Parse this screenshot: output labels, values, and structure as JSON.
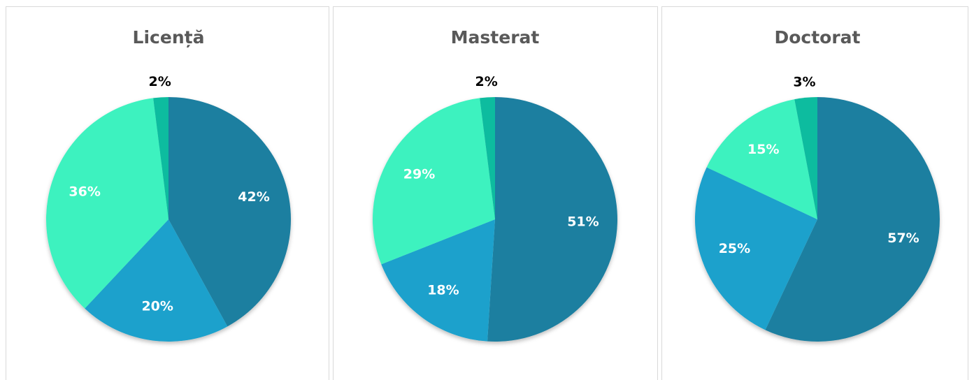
{
  "chart_data": [
    {
      "type": "pie",
      "title": "Licență",
      "values": [
        42,
        20,
        36,
        2
      ],
      "value_labels": [
        "42%",
        "20%",
        "36%",
        "2%"
      ],
      "colors": [
        "#1f7fa0",
        "#1aa1cc",
        "#3df2bf",
        "#10bc9f"
      ]
    },
    {
      "type": "pie",
      "title": "Masterat",
      "values": [
        51,
        18,
        29,
        2
      ],
      "value_labels": [
        "51%",
        "18%",
        "29%",
        "2%"
      ],
      "colors": [
        "#1f7fa0",
        "#1aa1cc",
        "#3df2bf",
        "#10bc9f"
      ]
    },
    {
      "type": "pie",
      "title": "Doctorat",
      "values": [
        57,
        25,
        15,
        3
      ],
      "value_labels": [
        "57%",
        "25%",
        "15%",
        "3%"
      ],
      "colors": [
        "#1f7fa0",
        "#1aa1cc",
        "#3df2bf",
        "#10bc9f"
      ]
    }
  ]
}
